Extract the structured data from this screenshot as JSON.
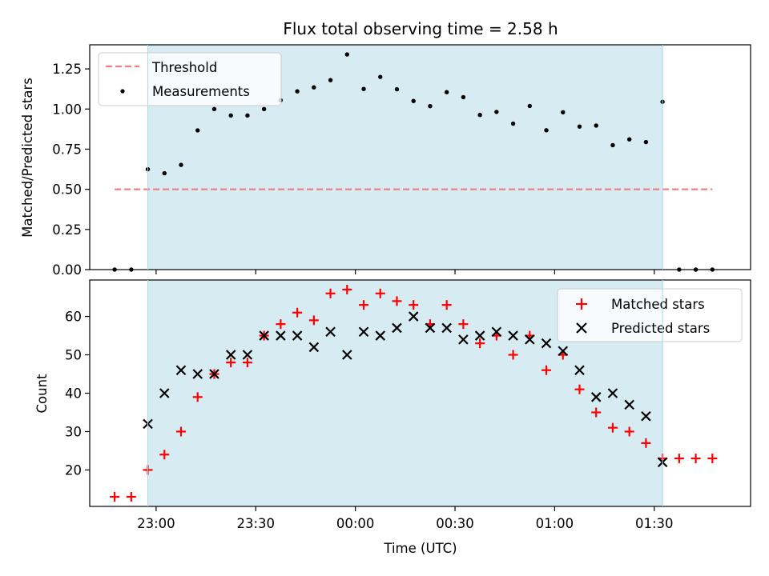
{
  "chart_data": [
    {
      "type": "scatter",
      "title": "Flux total observing time = 2.58 h",
      "xlabel": "",
      "ylabel": "Matched/Predicted stars",
      "ylim": [
        0,
        1.4
      ],
      "yticks": [
        0.0,
        0.25,
        0.5,
        0.75,
        1.0,
        1.25
      ],
      "ytick_labels": [
        "0.00",
        "0.25",
        "0.50",
        "0.75",
        "1.00",
        "1.25"
      ],
      "x_axis": "time UTC, minutes relative to 00:00",
      "xlim": [
        -80,
        119
      ],
      "shaded_interval": [
        -62.5,
        92.5
      ],
      "shade_color": "#add8e6",
      "threshold": {
        "name": "Threshold",
        "value": 0.5,
        "x_range": [
          -72.5,
          107.5
        ],
        "color": "#f08080"
      },
      "series": [
        {
          "name": "Measurements",
          "color": "#000000",
          "marker": "dot",
          "points": [
            [
              -72.5,
              0.0
            ],
            [
              -67.5,
              0.0
            ],
            [
              -62.5,
              0.625
            ],
            [
              -57.5,
              0.6
            ],
            [
              -52.5,
              0.652
            ],
            [
              -47.5,
              0.867
            ],
            [
              -42.5,
              1.0
            ],
            [
              -37.5,
              0.96
            ],
            [
              -32.5,
              0.96
            ],
            [
              -27.5,
              1.0
            ],
            [
              -22.5,
              1.055
            ],
            [
              -17.5,
              1.11
            ],
            [
              -12.5,
              1.135
            ],
            [
              -7.5,
              1.18
            ],
            [
              -2.5,
              1.34
            ],
            [
              2.5,
              1.125
            ],
            [
              7.5,
              1.2
            ],
            [
              12.5,
              1.123
            ],
            [
              17.5,
              1.05
            ],
            [
              22.5,
              1.018
            ],
            [
              27.5,
              1.105
            ],
            [
              32.5,
              1.074
            ],
            [
              37.5,
              0.963
            ],
            [
              42.5,
              0.982
            ],
            [
              47.5,
              0.909
            ],
            [
              52.5,
              1.019
            ],
            [
              57.5,
              0.868
            ],
            [
              62.5,
              0.98
            ],
            [
              67.5,
              0.891
            ],
            [
              72.5,
              0.897
            ],
            [
              77.5,
              0.775
            ],
            [
              82.5,
              0.811
            ],
            [
              87.5,
              0.794
            ],
            [
              92.5,
              1.045
            ],
            [
              97.5,
              0.0
            ],
            [
              102.5,
              0.0
            ],
            [
              107.5,
              0.0
            ]
          ]
        }
      ],
      "legend_position": "upper-left"
    },
    {
      "type": "scatter",
      "title": "",
      "xlabel": "Time (UTC)",
      "ylabel": "Count",
      "ylim": [
        10.5,
        69.5
      ],
      "yticks": [
        20,
        30,
        40,
        50,
        60
      ],
      "ytick_labels": [
        "20",
        "30",
        "40",
        "50",
        "60"
      ],
      "xticks": [
        -60,
        -30,
        0,
        30,
        60,
        90
      ],
      "xtick_labels": [
        "23:00",
        "23:30",
        "00:00",
        "00:30",
        "01:00",
        "01:30"
      ],
      "xlim": [
        -80,
        119
      ],
      "shaded_interval": [
        -62.5,
        92.5
      ],
      "shade_color": "#add8e6",
      "series": [
        {
          "name": "Matched stars",
          "color": "#ff0000",
          "marker": "plus",
          "x": [
            -72.5,
            -67.5,
            -62.5,
            -57.5,
            -52.5,
            -47.5,
            -42.5,
            -37.5,
            -32.5,
            -27.5,
            -22.5,
            -17.5,
            -12.5,
            -7.5,
            -2.5,
            2.5,
            7.5,
            12.5,
            17.5,
            22.5,
            27.5,
            32.5,
            37.5,
            42.5,
            47.5,
            52.5,
            57.5,
            62.5,
            67.5,
            72.5,
            77.5,
            82.5,
            87.5,
            92.5,
            97.5,
            102.5,
            107.5
          ],
          "values": [
            13,
            13,
            20,
            24,
            30,
            39,
            45,
            48,
            48,
            55,
            58,
            61,
            59,
            66,
            67,
            63,
            66,
            64,
            63,
            58,
            63,
            58,
            53,
            55,
            50,
            55,
            46,
            50,
            41,
            35,
            31,
            30,
            27,
            23,
            23,
            23,
            23
          ]
        },
        {
          "name": "Predicted stars",
          "color": "#000000",
          "marker": "x",
          "x": [
            -62.5,
            -57.5,
            -52.5,
            -47.5,
            -42.5,
            -37.5,
            -32.5,
            -27.5,
            -22.5,
            -17.5,
            -12.5,
            -7.5,
            -2.5,
            2.5,
            7.5,
            12.5,
            17.5,
            22.5,
            27.5,
            32.5,
            37.5,
            42.5,
            47.5,
            52.5,
            57.5,
            62.5,
            67.5,
            72.5,
            77.5,
            82.5,
            87.5,
            92.5
          ],
          "values": [
            32,
            40,
            46,
            45,
            45,
            50,
            50,
            55,
            55,
            55,
            52,
            56,
            50,
            56,
            55,
            57,
            60,
            57,
            57,
            54,
            55,
            56,
            55,
            54,
            53,
            51,
            46,
            39,
            40,
            37,
            34,
            22
          ]
        }
      ],
      "legend_position": "upper-right"
    }
  ]
}
